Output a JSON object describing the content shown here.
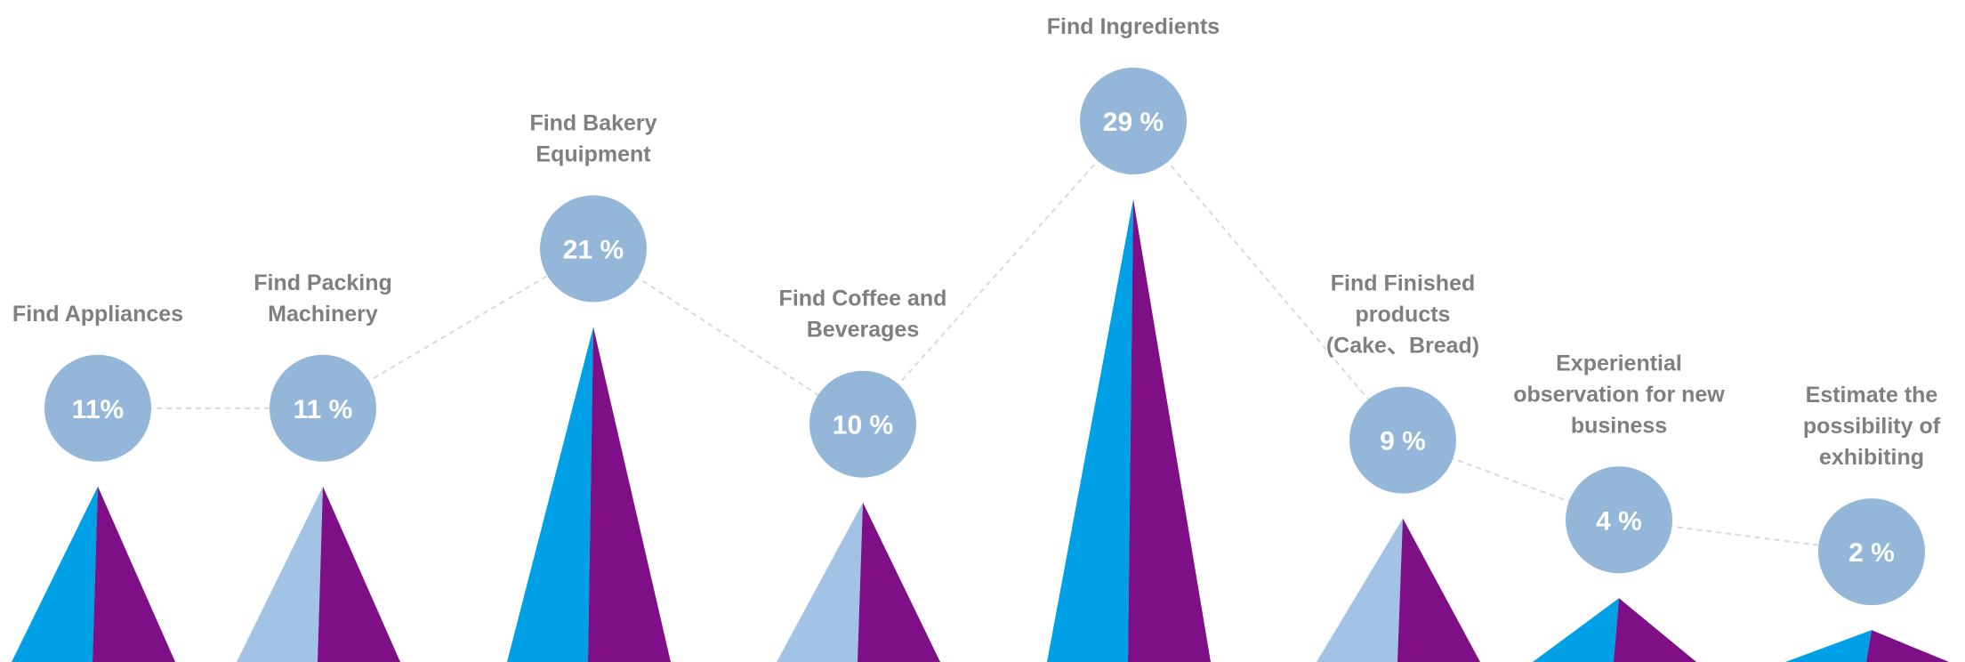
{
  "chart_data": {
    "type": "bar",
    "title": "",
    "xlabel": "",
    "ylabel": "",
    "ylim": [
      0,
      29
    ],
    "grid": false,
    "legend": "none",
    "categories": [
      [
        "Find Appliances"
      ],
      [
        "Find Packing",
        "Machinery"
      ],
      [
        "Find Bakery",
        "Equipment"
      ],
      [
        "Find  Coffee and",
        "Beverages"
      ],
      [
        "Find Ingredients"
      ],
      [
        "Find  Finished",
        "products",
        "(Cake、Bread)"
      ],
      [
        "Experiential",
        "observation for new",
        "business"
      ],
      [
        "Estimate the",
        "possibility of",
        "exhibiting"
      ]
    ],
    "values": [
      11,
      11,
      21,
      10,
      29,
      9,
      4,
      2
    ],
    "value_labels": [
      "11%",
      "11 %",
      "21 %",
      "10 %",
      "29 %",
      "9 %",
      "4 %",
      "2 %"
    ],
    "colors": {
      "bubble": "#93b6d9",
      "connector": "#d9d9d9",
      "left_face_primary": "#00a0e6",
      "left_face_alt": "#a2c3e6",
      "right_face": "#7f0f87"
    },
    "left_face_style": [
      "primary",
      "alt",
      "primary",
      "alt",
      "primary",
      "alt",
      "primary",
      "primary"
    ]
  }
}
